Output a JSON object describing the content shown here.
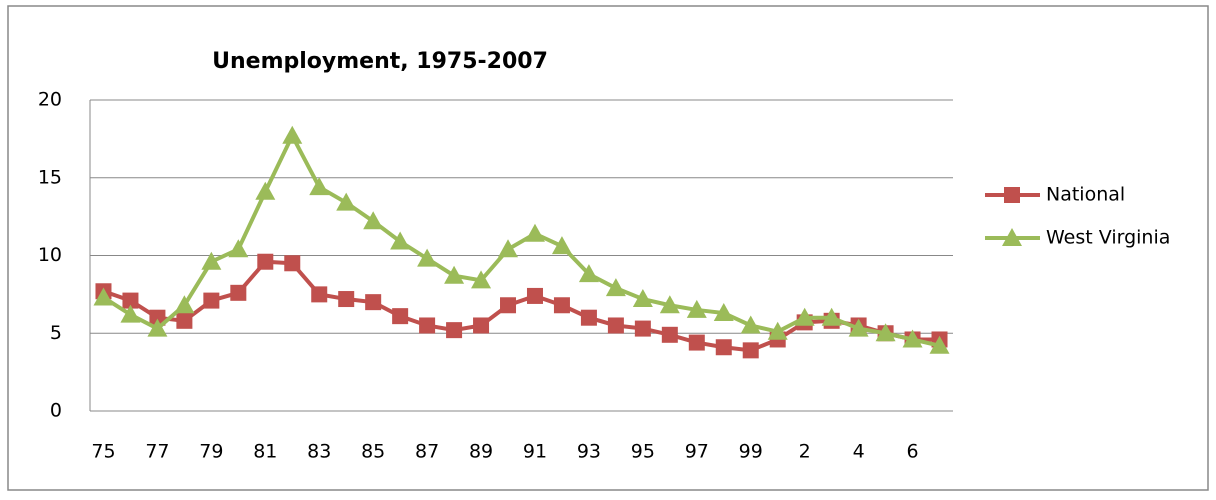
{
  "chart_data": {
    "type": "line",
    "title": "Unemployment, 1975-2007",
    "categories": [
      "75",
      null,
      "77",
      null,
      "79",
      null,
      "81",
      null,
      "83",
      null,
      "85",
      null,
      "87",
      null,
      "89",
      null,
      "91",
      null,
      "93",
      null,
      "95",
      null,
      "97",
      null,
      "99",
      null,
      "2",
      null,
      "4",
      null,
      "6",
      null
    ],
    "series": [
      {
        "name": "National",
        "color": "#c0504d",
        "marker": "square",
        "values": [
          7.7,
          7.1,
          6.0,
          5.8,
          7.1,
          7.6,
          9.6,
          9.5,
          7.5,
          7.2,
          7.0,
          6.1,
          5.5,
          5.2,
          5.5,
          6.8,
          7.4,
          6.8,
          6.0,
          5.5,
          5.3,
          4.9,
          4.4,
          4.1,
          3.9,
          4.6,
          5.7,
          5.8,
          5.5,
          5.0,
          4.6,
          4.6
        ]
      },
      {
        "name": "West Virginia",
        "color": "#9bbb59",
        "marker": "triangle",
        "values": [
          7.3,
          6.2,
          5.3,
          6.8,
          9.6,
          10.4,
          14.1,
          17.7,
          14.4,
          13.4,
          12.2,
          10.9,
          9.8,
          8.7,
          8.4,
          10.4,
          11.4,
          10.6,
          8.8,
          7.9,
          7.2,
          6.8,
          6.5,
          6.3,
          5.5,
          5.1,
          6.0,
          6.0,
          5.3,
          5.0,
          4.6,
          4.2
        ]
      }
    ],
    "ylim": [
      0,
      20
    ],
    "yticks": [
      0,
      5,
      10,
      15,
      20
    ],
    "grid": true,
    "legend": "right"
  }
}
